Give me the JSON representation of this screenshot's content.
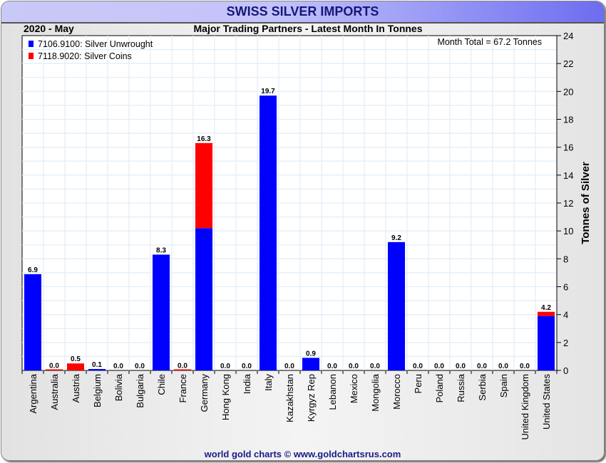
{
  "title": "SWISS SILVER IMPORTS",
  "period": "2020 - May",
  "subtitle": "Major Trading Partners - Latest Month In Tonnes",
  "month_total": "Month Total = 67.2 Tonnes",
  "footer": "world gold charts © www.goldchartsrus.com",
  "chart_data": {
    "type": "bar",
    "stacked": true,
    "title": "SWISS SILVER IMPORTS",
    "ylabel": "Tonnes of Silver",
    "ylim": [
      0,
      24
    ],
    "yticks": [
      0,
      2,
      4,
      6,
      8,
      10,
      12,
      14,
      16,
      18,
      20,
      22,
      24
    ],
    "legend_position": "top-left",
    "categories": [
      "Argentina",
      "Australia",
      "Austria",
      "Belgium",
      "Bolivia",
      "Bulgaria",
      "Chile",
      "France",
      "Germany",
      "Hong Kong",
      "India",
      "Italy",
      "Kazakhstan",
      "Kyrgyz Rep",
      "Lebanon",
      "Mexico",
      "Mongolia",
      "Morocco",
      "Peru",
      "Poland",
      "Russia",
      "Serbia",
      "Spain",
      "United Kingdom",
      "United States"
    ],
    "series": [
      {
        "name": "7106.9100: Silver Unwrought",
        "color": "#0000ff",
        "values": [
          6.9,
          0,
          0,
          0.1,
          0,
          0,
          8.3,
          0,
          10.2,
          0,
          0,
          19.7,
          0,
          0.9,
          0,
          0,
          0,
          9.2,
          0,
          0,
          0,
          0,
          0,
          0,
          3.9
        ]
      },
      {
        "name": "7118.9020: Silver Coins",
        "color": "#ff0000",
        "values": [
          0,
          0.02,
          0.5,
          0,
          0,
          0,
          0,
          0.02,
          6.1,
          0,
          0,
          0,
          0,
          0,
          0,
          0,
          0,
          0,
          0,
          0,
          0,
          0,
          0,
          0,
          0.3
        ]
      }
    ],
    "totals": [
      "6.9",
      "0.0",
      "0.5",
      "0.1",
      "0.0",
      "0.0",
      "8.3",
      "0.0",
      "16.3",
      "0.0",
      "0.0",
      "19.7",
      "0.0",
      "0.9",
      "0.0",
      "0.0",
      "0.0",
      "9.2",
      "0.0",
      "0.0",
      "0.0",
      "0.0",
      "0.0",
      "0.0",
      "4.2"
    ]
  }
}
